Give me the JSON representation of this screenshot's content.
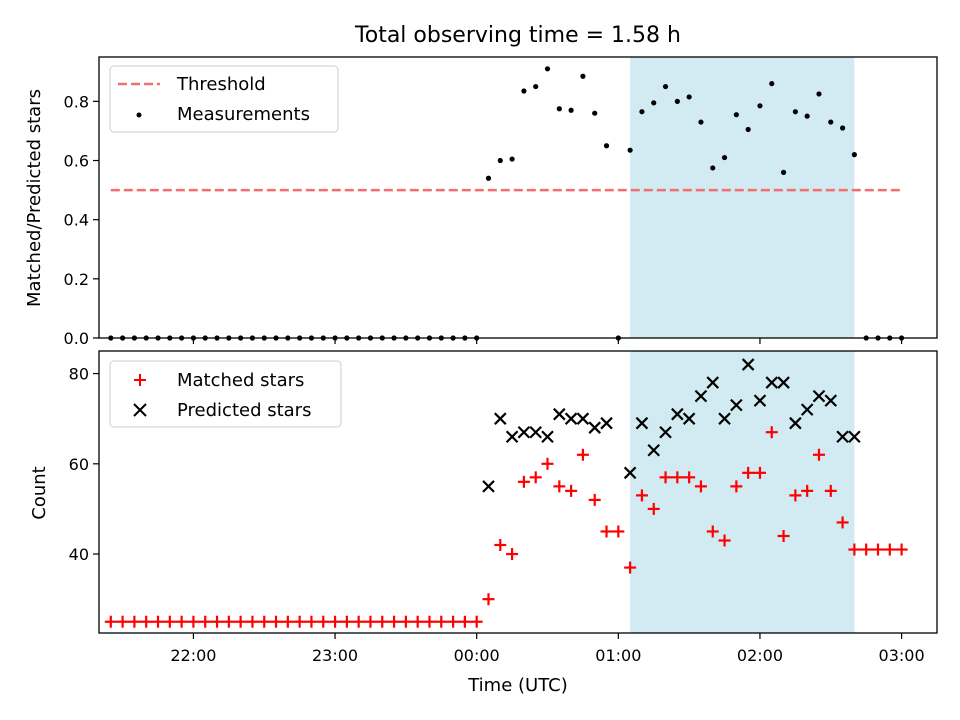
{
  "title": "Total observing time = 1.58 h",
  "chart_data": [
    {
      "type": "scatter",
      "ylabel": "Matched/Predicted stars",
      "xlim": [
        "21:20",
        "03:15"
      ],
      "ylim": [
        0,
        0.95
      ],
      "yticks": [
        "0.0",
        "0.2",
        "0.4",
        "0.6",
        "0.8"
      ],
      "highlight_span": [
        "01:05",
        "02:40"
      ],
      "legend_position": "top-left",
      "threshold": {
        "name": "Threshold",
        "value": 0.5,
        "x": [
          "21:25",
          "03:00"
        ],
        "color": "#f07070"
      },
      "series": [
        {
          "name": "Measurements",
          "color": "#000000",
          "x": [
            "21:25",
            "21:30",
            "21:35",
            "21:40",
            "21:45",
            "21:50",
            "21:55",
            "22:00",
            "22:05",
            "22:10",
            "22:15",
            "22:20",
            "22:25",
            "22:30",
            "22:35",
            "22:40",
            "22:45",
            "22:50",
            "22:55",
            "23:00",
            "23:05",
            "23:10",
            "23:15",
            "23:20",
            "23:25",
            "23:30",
            "23:35",
            "23:40",
            "23:45",
            "23:50",
            "23:55",
            "00:00",
            "00:05",
            "00:10",
            "00:15",
            "00:20",
            "00:25",
            "00:30",
            "00:35",
            "00:40",
            "00:45",
            "00:50",
            "00:55",
            "01:00",
            "01:05",
            "01:10",
            "01:15",
            "01:20",
            "01:25",
            "01:30",
            "01:35",
            "01:40",
            "01:45",
            "01:50",
            "01:55",
            "02:00",
            "02:05",
            "02:10",
            "02:15",
            "02:20",
            "02:25",
            "02:30",
            "02:35",
            "02:40",
            "02:45",
            "02:50",
            "02:55",
            "03:00"
          ],
          "y": [
            0,
            0,
            0,
            0,
            0,
            0,
            0,
            0,
            0,
            0,
            0,
            0,
            0,
            0,
            0,
            0,
            0,
            0,
            0,
            0,
            0,
            0,
            0,
            0,
            0,
            0,
            0,
            0,
            0,
            0,
            0,
            0,
            0.54,
            0.6,
            0.605,
            0.835,
            0.85,
            0.91,
            0.775,
            0.77,
            0.885,
            0.76,
            0.65,
            0,
            0.635,
            0.765,
            0.795,
            0.85,
            0.8,
            0.815,
            0.73,
            0.575,
            0.61,
            0.755,
            0.705,
            0.785,
            0.86,
            0.56,
            0.765,
            0.75,
            0.825,
            0.73,
            0.71,
            0.62,
            0,
            0,
            0,
            0
          ]
        }
      ]
    },
    {
      "type": "scatter",
      "xlabel": "Time (UTC)",
      "ylabel": "Count",
      "xlim": [
        "21:20",
        "03:15"
      ],
      "ylim": [
        22.5,
        85
      ],
      "yticks": [
        "40",
        "60",
        "80"
      ],
      "xticks": [
        "22:00",
        "23:00",
        "00:00",
        "01:00",
        "02:00",
        "03:00"
      ],
      "highlight_span": [
        "01:05",
        "02:40"
      ],
      "legend_position": "top-left",
      "series": [
        {
          "name": "Matched stars",
          "marker": "plus",
          "color": "#ff0000",
          "x": [
            "21:25",
            "21:30",
            "21:35",
            "21:40",
            "21:45",
            "21:50",
            "21:55",
            "22:00",
            "22:05",
            "22:10",
            "22:15",
            "22:20",
            "22:25",
            "22:30",
            "22:35",
            "22:40",
            "22:45",
            "22:50",
            "22:55",
            "23:00",
            "23:05",
            "23:10",
            "23:15",
            "23:20",
            "23:25",
            "23:30",
            "23:35",
            "23:40",
            "23:45",
            "23:50",
            "23:55",
            "00:00",
            "00:05",
            "00:10",
            "00:15",
            "00:20",
            "00:25",
            "00:30",
            "00:35",
            "00:40",
            "00:45",
            "00:50",
            "00:55",
            "01:00",
            "01:05",
            "01:10",
            "01:15",
            "01:20",
            "01:25",
            "01:30",
            "01:35",
            "01:40",
            "01:45",
            "01:50",
            "01:55",
            "02:00",
            "02:05",
            "02:10",
            "02:15",
            "02:20",
            "02:25",
            "02:30",
            "02:35",
            "02:40",
            "02:45",
            "02:50",
            "02:55",
            "03:00"
          ],
          "y": [
            25,
            25,
            25,
            25,
            25,
            25,
            25,
            25,
            25,
            25,
            25,
            25,
            25,
            25,
            25,
            25,
            25,
            25,
            25,
            25,
            25,
            25,
            25,
            25,
            25,
            25,
            25,
            25,
            25,
            25,
            25,
            25,
            30,
            42,
            40,
            56,
            57,
            60,
            55,
            54,
            62,
            52,
            45,
            45,
            37,
            53,
            50,
            57,
            57,
            57,
            55,
            45,
            43,
            55,
            58,
            58,
            67,
            44,
            53,
            54,
            62,
            54,
            47,
            41,
            41,
            41,
            41,
            41
          ]
        },
        {
          "name": "Predicted stars",
          "marker": "x",
          "color": "#000000",
          "x": [
            "00:05",
            "00:10",
            "00:15",
            "00:20",
            "00:25",
            "00:30",
            "00:35",
            "00:40",
            "00:45",
            "00:50",
            "00:55",
            "01:05",
            "01:10",
            "01:15",
            "01:20",
            "01:25",
            "01:30",
            "01:35",
            "01:40",
            "01:45",
            "01:50",
            "01:55",
            "02:00",
            "02:05",
            "02:10",
            "02:15",
            "02:20",
            "02:25",
            "02:30",
            "02:35",
            "02:40"
          ],
          "y": [
            55,
            70,
            66,
            67,
            67,
            66,
            71,
            70,
            70,
            68,
            69,
            58,
            69,
            63,
            67,
            71,
            70,
            75,
            78,
            70,
            73,
            82,
            74,
            78,
            78,
            69,
            72,
            75,
            74,
            66,
            66
          ]
        }
      ]
    }
  ]
}
